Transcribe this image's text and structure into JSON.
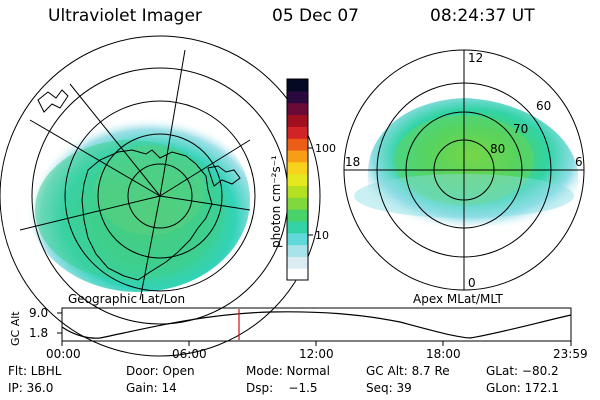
{
  "header": {
    "instrument": "Ultraviolet Imager",
    "date": "05 Dec 07",
    "time": "08:24:37 UT"
  },
  "left_panel": {
    "caption": "Geographic Lat/Lon"
  },
  "right_panel": {
    "caption": "Apex MLat/MLT",
    "mlt_labels": {
      "top": "12",
      "left": "18",
      "right": "6",
      "bottom": "0"
    },
    "lat_labels": [
      "60",
      "70",
      "80"
    ]
  },
  "colorbar": {
    "unit_label": "photon cm⁻²s⁻¹",
    "ticks": [
      "100",
      "10"
    ],
    "colors": [
      "#ffffff",
      "#dcecf3",
      "#a8e3ea",
      "#5fd9da",
      "#33d3a6",
      "#4ad26a",
      "#7fd93d",
      "#b3e021",
      "#e5e81e",
      "#f8d11d",
      "#f79d16",
      "#ec5d18",
      "#d22326",
      "#a10e1e",
      "#6a0a36",
      "#2a0a3e",
      "#050a22"
    ]
  },
  "altitude_plot": {
    "ylabel": "GC Alt",
    "y_ticks": [
      "9.0",
      "1.8"
    ],
    "x_ticks": [
      "00:00",
      "06:00",
      "12:00",
      "18:00",
      "23:59"
    ],
    "marker_color": "#d01010"
  },
  "info": {
    "row1": {
      "filter": "Flt: LBHL",
      "door": "Door: Open",
      "mode": "Mode: Normal",
      "gc_alt": "GC Alt: 8.7 Re",
      "glat": "GLat: −80.2"
    },
    "row2": {
      "ip": "IP: 36.0",
      "gain": "Gain: 14",
      "dsp": "Dsp:    −1.5",
      "seq": "Seq: 39",
      "glon": "GLon: 172.1"
    }
  }
}
